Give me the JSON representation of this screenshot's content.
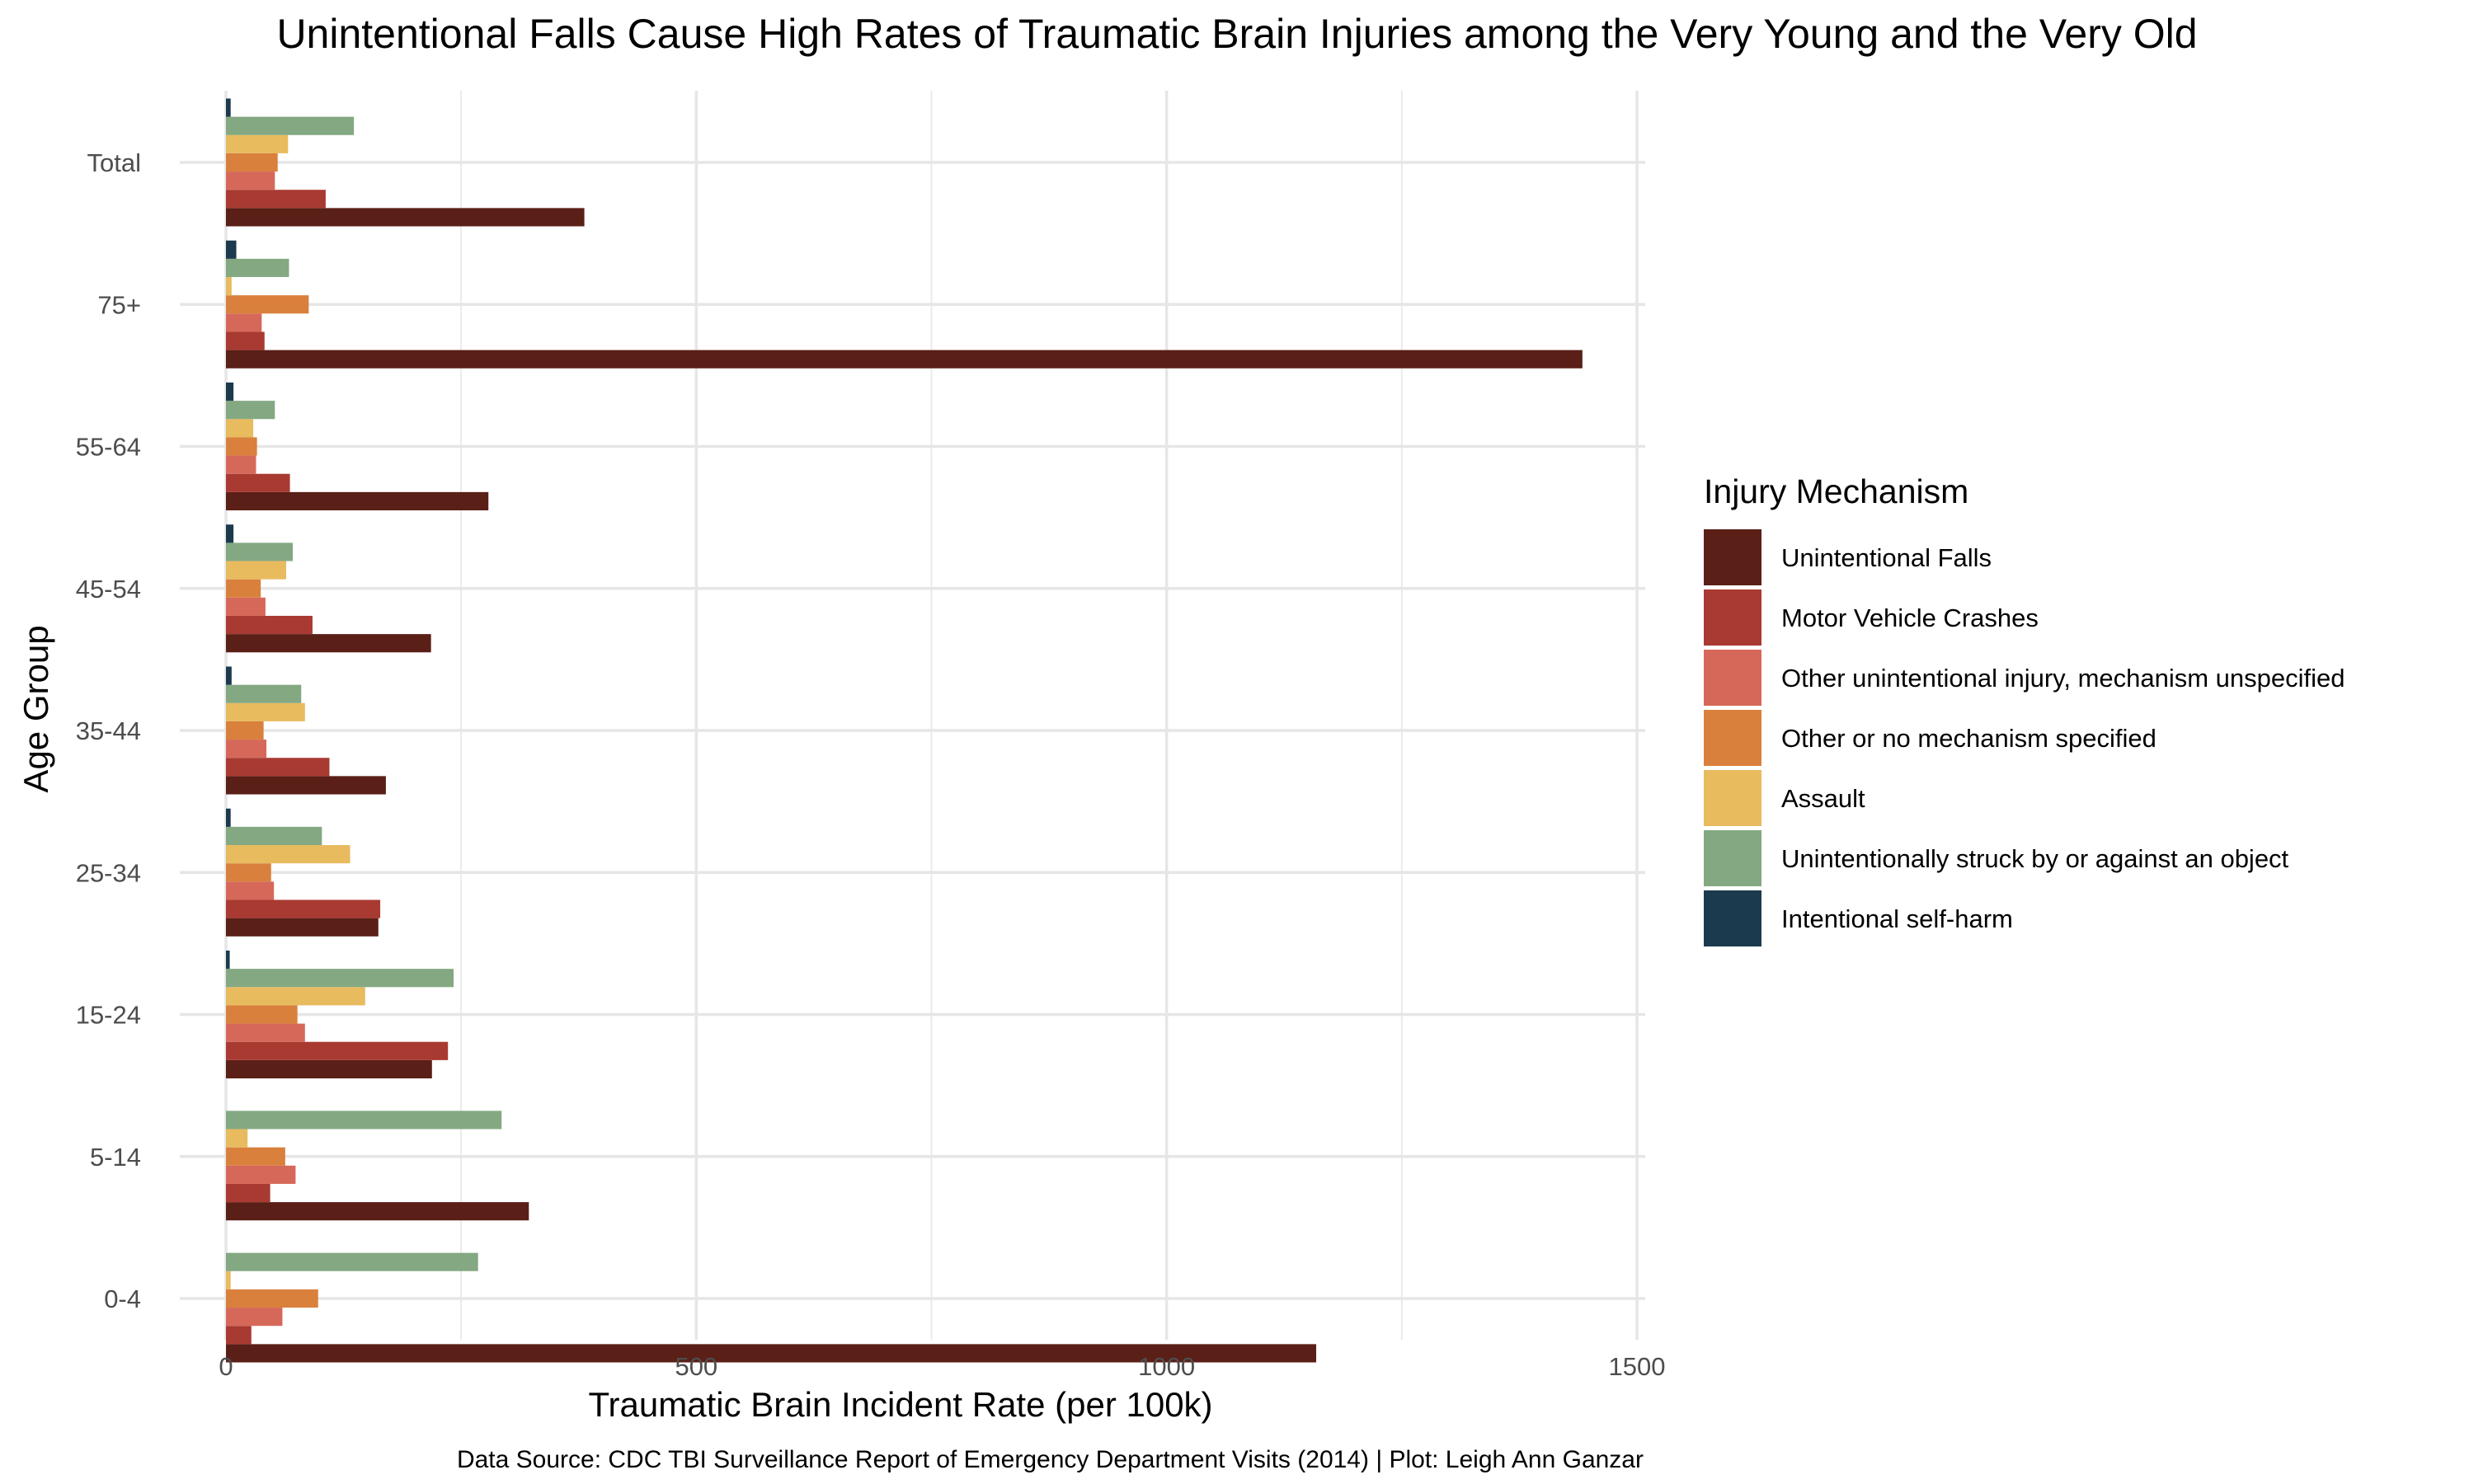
{
  "chart_data": {
    "type": "bar",
    "orientation": "horizontal",
    "title": "Unintentional Falls Cause High Rates of Traumatic Brain Injuries among the Very Young and the Very Old",
    "xlabel": "Traumatic Brain Incident Rate (per 100k)",
    "ylabel": "Age Group",
    "caption": "Data Source: CDC TBI Surveillance Report of Emergency Department Visits (2014) | Plot: Leigh Ann Ganzar",
    "xlim": [
      0,
      1500
    ],
    "x_ticks": [
      "0",
      "500",
      "1000",
      "1500"
    ],
    "grid": true,
    "legend_title": "Injury Mechanism",
    "legend_position": "right",
    "categories": [
      "0-4",
      "5-14",
      "15-24",
      "25-34",
      "35-44",
      "45-54",
      "55-64",
      "75+",
      "Total"
    ],
    "series": [
      {
        "name": "Unintentional Falls",
        "color": "#5a1f17",
        "values": [
          1159,
          322,
          219,
          162,
          170,
          218,
          279,
          1442,
          381
        ]
      },
      {
        "name": "Motor Vehicle Crashes",
        "color": "#a83a32",
        "values": [
          27,
          47,
          236,
          164,
          110,
          92,
          68,
          41,
          106
        ]
      },
      {
        "name": "Other unintentional injury, mechanism unspecified",
        "color": "#d6685a",
        "values": [
          60,
          74,
          84,
          51,
          43,
          42,
          32,
          38,
          52
        ]
      },
      {
        "name": "Other or no mechanism specified",
        "color": "#d9803d",
        "values": [
          98,
          63,
          76,
          48,
          40,
          37,
          33,
          88,
          55
        ]
      },
      {
        "name": "Assault",
        "color": "#e8bb5f",
        "values": [
          5,
          23,
          148,
          132,
          84,
          64,
          29,
          6,
          66
        ]
      },
      {
        "name": "Unintentionally struck by or against an object",
        "color": "#84a882",
        "values": [
          268,
          293,
          242,
          102,
          80,
          71,
          52,
          67,
          136
        ]
      },
      {
        "name": "Intentional self-harm",
        "color": "#1c3a4e",
        "values": [
          0,
          0,
          4,
          5,
          6,
          8,
          8,
          11,
          5
        ]
      }
    ]
  }
}
